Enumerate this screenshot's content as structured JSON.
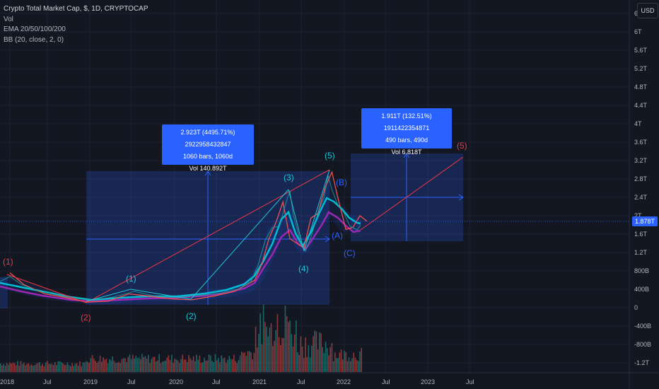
{
  "legend": {
    "title": "Crypto Total Market Cap, $, 1D, CRYPTOCAP",
    "vol": "Vol",
    "ema": "EMA 20/50/100/200",
    "bb": "BB (20, close, 2, 0)"
  },
  "currency_button": "USD",
  "last_price_tag": "1.878T",
  "colors": {
    "background": "#131722",
    "grid": "#1e222d",
    "measure_fill": "#2962ff",
    "wave_red": "#f23645",
    "wave_cyan": "#22c4d8",
    "wave_blue": "#2962ff",
    "ema_cyan": "#00bcd4",
    "ema_purple": "#9c27b0"
  },
  "measure_left": {
    "line1": "2.923T (4495.71%) 2922958432847",
    "line2": "1060 bars, 1060d",
    "line3": "Vol 140.892T"
  },
  "measure_right": {
    "line1": "1.911T (132.51%) 1911422354871",
    "line2": "490 bars, 490d",
    "line3": "Vol 6.818T"
  },
  "chart_data": {
    "type": "line",
    "title": "Crypto Total Market Cap, $, 1D, CRYPTOCAP",
    "y_ticks": [
      "6.4T",
      "6T",
      "5.6T",
      "5.2T",
      "4.8T",
      "4.4T",
      "4T",
      "3.6T",
      "3.2T",
      "2.8T",
      "2.4T",
      "2T",
      "1.6T",
      "1.2T",
      "800B",
      "400B",
      "0",
      "-400B",
      "-800B",
      "-1.2T"
    ],
    "x_ticks": [
      "2018",
      "Jul",
      "2019",
      "Jul",
      "2020",
      "Jul",
      "2021",
      "Jul",
      "2022",
      "Jul",
      "2023",
      "Jul"
    ],
    "series": [
      {
        "x": [
          "2018-01",
          "2018-03",
          "2018-06",
          "2018-09",
          "2018-12",
          "2019-03",
          "2019-06",
          "2019-09",
          "2019-12",
          "2020-03",
          "2020-06",
          "2020-09",
          "2020-12",
          "2021-01",
          "2021-02",
          "2021-03",
          "2021-04",
          "2021-05",
          "2021-06",
          "2021-07",
          "2021-08",
          "2021-09",
          "2021-10",
          "2021-11",
          "2021-12",
          "2022-01",
          "2022-02",
          "2022-03",
          "2022-04"
        ],
        "values": [
          0.76,
          0.5,
          0.3,
          0.22,
          0.12,
          0.14,
          0.3,
          0.25,
          0.19,
          0.17,
          0.25,
          0.35,
          0.6,
          0.95,
          1.5,
          1.85,
          2.3,
          1.5,
          1.4,
          1.3,
          1.95,
          2.05,
          2.6,
          2.95,
          2.3,
          1.7,
          1.75,
          2.0,
          1.88
        ]
      }
    ],
    "wave_labels": [
      {
        "text": "(1)",
        "color": "red"
      },
      {
        "text": "(2)",
        "color": "red"
      },
      {
        "text": "(1)",
        "color": "cyan"
      },
      {
        "text": "(2)",
        "color": "cyan"
      },
      {
        "text": "(3)",
        "color": "cyan"
      },
      {
        "text": "(4)",
        "color": "cyan"
      },
      {
        "text": "(5)",
        "color": "cyan"
      },
      {
        "text": "(A)",
        "color": "blue"
      },
      {
        "text": "(B)",
        "color": "blue"
      },
      {
        "text": "(C)",
        "color": "blue"
      },
      {
        "text": "(5)",
        "color": "red"
      }
    ]
  }
}
